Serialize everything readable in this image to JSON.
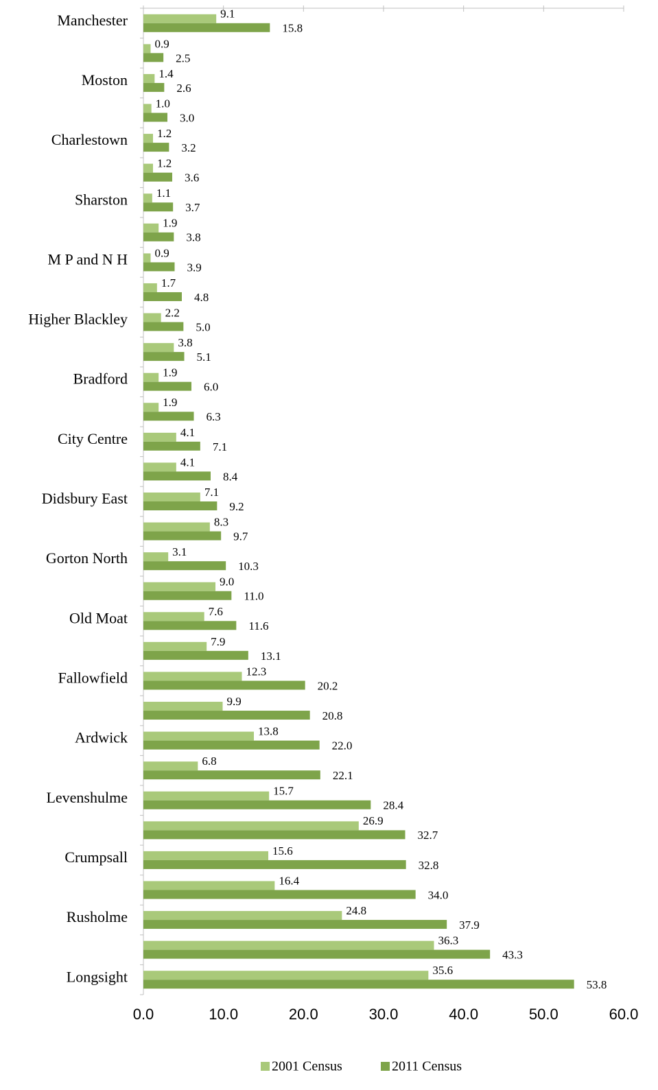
{
  "chart_data": {
    "type": "bar",
    "orientation": "horizontal",
    "categories": [
      "Manchester",
      null,
      "Moston",
      null,
      "Charlestown",
      null,
      "Sharston",
      null,
      "M P and N H",
      null,
      "Higher Blackley",
      null,
      "Bradford",
      null,
      "City Centre",
      null,
      "Didsbury East",
      null,
      "Gorton North",
      null,
      "Old Moat",
      null,
      "Fallowfield",
      null,
      "Ardwick",
      null,
      "Levenshulme",
      null,
      "Crumpsall",
      null,
      "Rusholme",
      null,
      "Longsight"
    ],
    "series": [
      {
        "name": "2001 Census",
        "color": "#a9c97a",
        "values": [
          9.1,
          0.9,
          1.4,
          1.0,
          1.2,
          1.2,
          1.1,
          1.9,
          0.9,
          1.7,
          2.2,
          3.8,
          1.9,
          1.9,
          4.1,
          4.1,
          7.1,
          8.3,
          3.1,
          9.0,
          7.6,
          7.9,
          12.3,
          9.9,
          13.8,
          6.8,
          15.7,
          26.9,
          15.6,
          16.4,
          24.8,
          36.3,
          35.6
        ],
        "value_labels": [
          "9.1",
          "0.9",
          "1.4",
          "1.0",
          "1.2",
          "1.2",
          "1.1",
          "1.9",
          "0.9",
          "1.7",
          "2.2",
          "3.8",
          "1.9",
          "1.9",
          "4.1",
          "4.1",
          "7.1",
          "8.3",
          "3.1",
          "9.0",
          "7.6",
          "7.9",
          "12.3",
          "9.9",
          "13.8",
          "6.8",
          "15.7",
          "26.9",
          "15.6",
          "16.4",
          "24.8",
          "36.3",
          "35.6"
        ]
      },
      {
        "name": "2011 Census",
        "color": "#7ea44a",
        "values": [
          15.8,
          2.5,
          2.6,
          3.0,
          3.2,
          3.6,
          3.7,
          3.8,
          3.9,
          4.8,
          5.0,
          5.1,
          6.0,
          6.3,
          7.1,
          8.4,
          9.2,
          9.7,
          10.3,
          11.0,
          11.6,
          13.1,
          20.2,
          20.8,
          22.0,
          22.1,
          28.4,
          32.7,
          32.8,
          34.0,
          37.9,
          43.3,
          53.8
        ],
        "value_labels": [
          "15.8",
          "2.5",
          "2.6",
          "3.0",
          "3.2",
          "3.6",
          "3.7",
          "3.8",
          "3.9",
          "4.8",
          "5.0",
          "5.1",
          "6.0",
          "6.3",
          "7.1",
          "8.4",
          "9.2",
          "9.7",
          "10.3",
          "11.0",
          "11.6",
          "13.1",
          "20.2",
          "20.8",
          "22.0",
          "22.1",
          "28.4",
          "32.7",
          "32.8",
          "34.0",
          "37.9",
          "43.3",
          "53.8"
        ]
      }
    ],
    "xlim": [
      0,
      60
    ],
    "xticks": [
      {
        "value": 0,
        "label": "0.0"
      },
      {
        "value": 10,
        "label": "10.0"
      },
      {
        "value": 20,
        "label": "20.0"
      },
      {
        "value": 30,
        "label": "30.0"
      },
      {
        "value": 40,
        "label": "40.0"
      },
      {
        "value": 50,
        "label": "50.0"
      },
      {
        "value": 60,
        "label": "60.0"
      }
    ],
    "legend": "bottom"
  }
}
